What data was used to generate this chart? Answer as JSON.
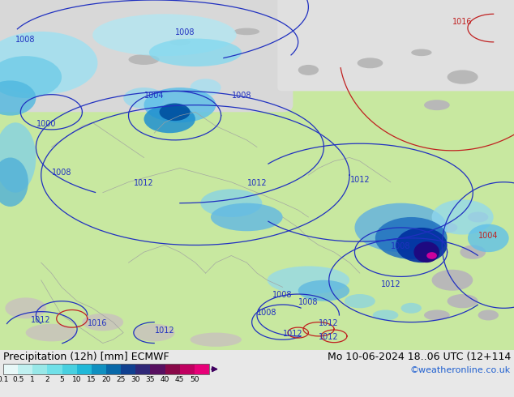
{
  "title_left": "Precipitation (12h) [mm] ECMWF",
  "title_right": "Mo 10-06-2024 18..06 UTC (12+114",
  "credit": "©weatheronline.co.uk",
  "colorbar_labels": [
    "0.1",
    "0.5",
    "1",
    "2",
    "5",
    "10",
    "15",
    "20",
    "25",
    "30",
    "35",
    "40",
    "45",
    "50"
  ],
  "colorbar_colors": [
    "#e8f8f8",
    "#c0f0f0",
    "#98e8e8",
    "#70e0e8",
    "#48d0e0",
    "#20b8d8",
    "#1090c0",
    "#0868a8",
    "#104090",
    "#302878",
    "#581060",
    "#880848",
    "#c00060",
    "#e80078"
  ],
  "land_color": "#c8e8a0",
  "ocean_color": "#d8eef8",
  "gray_land_color": "#c8c8c8",
  "bg_color": "#e0e0e0",
  "bottom_bg": "#e8e8e8",
  "font_size_title": 9,
  "font_size_labels": 7,
  "credit_color": "#2060d0",
  "isobar_color_blue": "#2030c0",
  "isobar_color_red": "#c02020",
  "fig_width": 6.34,
  "fig_height": 4.9,
  "dpi": 100
}
